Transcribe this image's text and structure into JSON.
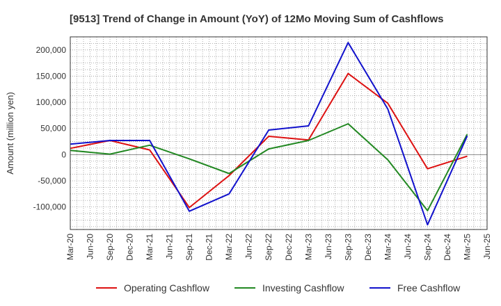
{
  "chart_data": {
    "type": "line",
    "title": "[9513]  Trend of Change in Amount (YoY) of 12Mo Moving Sum of Cashflows",
    "xlabel": "",
    "ylabel": "Amount (million yen)",
    "ylim": [
      -143000,
      225000
    ],
    "yticks": [
      -100000,
      -50000,
      0,
      50000,
      100000,
      150000,
      200000
    ],
    "ytick_labels": [
      "-100,000",
      "-50,000",
      "0",
      "50,000",
      "100,000",
      "150,000",
      "200,000"
    ],
    "categories": [
      "Mar-20",
      "Jun-20",
      "Sep-20",
      "Dec-20",
      "Mar-21",
      "Jun-21",
      "Sep-21",
      "Dec-21",
      "Mar-22",
      "Jun-22",
      "Sep-22",
      "Dec-22",
      "Mar-23",
      "Jun-23",
      "Sep-23",
      "Dec-23",
      "Mar-24",
      "Jun-24",
      "Sep-24",
      "Dec-24",
      "Mar-25",
      "Jun-25"
    ],
    "grid": true,
    "legend_position": "bottom",
    "series": [
      {
        "name": "Operating Cashflow",
        "color": "#dd1111",
        "values": [
          12000,
          null,
          27000,
          null,
          9000,
          null,
          -101000,
          null,
          -40000,
          null,
          35000,
          null,
          28000,
          null,
          155000,
          null,
          98000,
          null,
          -27000,
          null,
          -3000,
          null
        ]
      },
      {
        "name": "Investing Cashflow",
        "color": "#228822",
        "values": [
          8000,
          null,
          1000,
          null,
          18000,
          null,
          -8000,
          null,
          -36000,
          null,
          11000,
          null,
          27000,
          null,
          59000,
          null,
          -10000,
          null,
          -107000,
          null,
          39000,
          null
        ]
      },
      {
        "name": "Free Cashflow",
        "color": "#1111cc",
        "values": [
          20000,
          null,
          27000,
          null,
          27000,
          null,
          -108000,
          null,
          -75000,
          null,
          47000,
          null,
          55000,
          null,
          214000,
          null,
          87000,
          null,
          -134000,
          null,
          36000,
          null
        ]
      }
    ]
  }
}
